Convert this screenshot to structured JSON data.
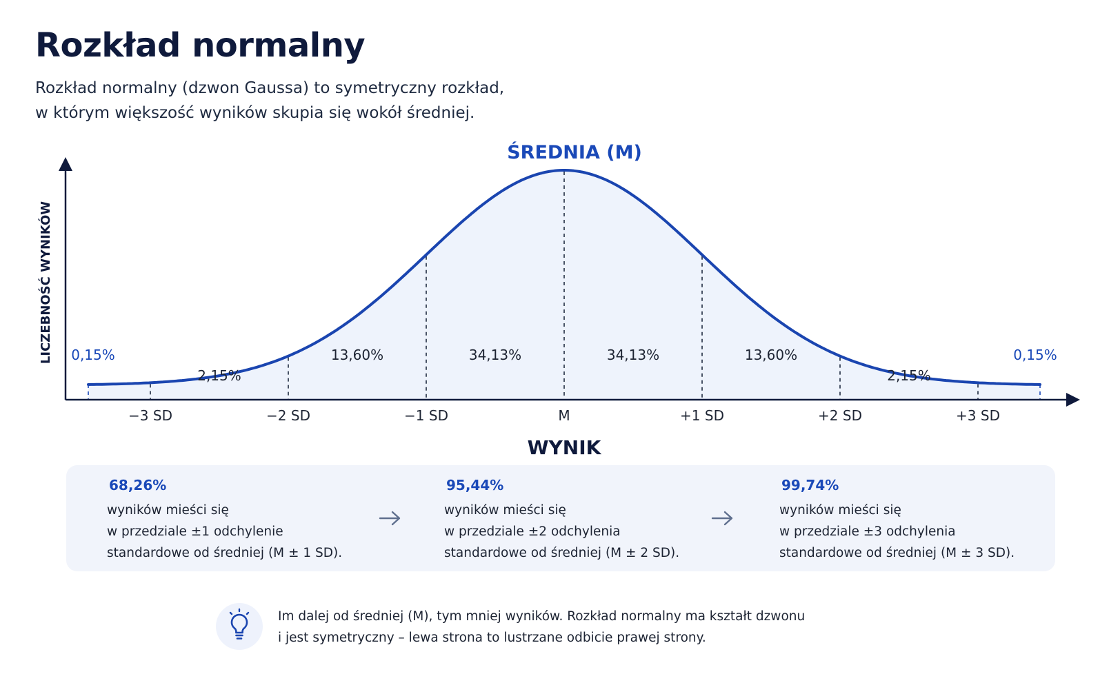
{
  "header": {
    "title": "Rozkład normalny",
    "subtitle_lines": [
      "Rozkład normalny (dzwon Gaussa) to symetryczny rozkład,",
      "w którym większość wyników skupia się wokół średniej."
    ]
  },
  "chart_data": {
    "type": "area",
    "mean_label": "ŚREDNIA (M)",
    "xlabel": "WYNIK",
    "ylabel": "LICZEBNOŚĆ WYNIKÓW",
    "tick_values": [
      -3,
      -2,
      -1,
      0,
      1,
      2,
      3
    ],
    "tick_labels": [
      "−3 SD",
      "−2 SD",
      "−1 SD",
      "M",
      "+1 SD",
      "+2 SD",
      "+3 SD"
    ],
    "xlim": [
      -3.45,
      3.45
    ],
    "segments": [
      {
        "label": "0,15%",
        "range": [
          -3.45,
          -3
        ],
        "highlight": true
      },
      {
        "label": "2,15%",
        "range": [
          -3,
          -2
        ],
        "highlight": false
      },
      {
        "label": "13,60%",
        "range": [
          -2,
          -1
        ],
        "highlight": false
      },
      {
        "label": "34,13%",
        "range": [
          -1,
          0
        ],
        "highlight": false
      },
      {
        "label": "34,13%",
        "range": [
          0,
          1
        ],
        "highlight": false
      },
      {
        "label": "13,60%",
        "range": [
          1,
          2
        ],
        "highlight": false
      },
      {
        "label": "2,15%",
        "range": [
          2,
          3
        ],
        "highlight": false
      },
      {
        "label": "0,15%",
        "range": [
          3,
          3.45
        ],
        "highlight": true
      }
    ],
    "colors": {
      "curve": "#1a45b0",
      "fill": "#eef3fc",
      "accent": "#1a49b8",
      "axis": "#0f1a3c"
    }
  },
  "summary": [
    {
      "percent": "68,26%",
      "lines": [
        "wyników mieści się",
        "w przedziale ±1 odchylenie",
        "standardowe od średniej (M ± 1 SD)."
      ]
    },
    {
      "percent": "95,44%",
      "lines": [
        "wyników mieści się",
        "w przedziale ±2 odchylenia",
        "standardowe od średniej (M ± 2 SD)."
      ]
    },
    {
      "percent": "99,74%",
      "lines": [
        "wyników mieści się",
        "w przedziale ±3 odchylenia",
        "standardowe od średniej (M ± 3 SD)."
      ]
    }
  ],
  "summary_arrow_icon": "arrow-right-icon",
  "tip": {
    "icon": "lightbulb-icon",
    "lines": [
      "Im dalej od średniej (M), tym mniej wyników. Rozkład normalny ma kształt dzwonu",
      "i jest symetryczny – lewa strona to lustrzane odbicie prawej strony."
    ]
  }
}
